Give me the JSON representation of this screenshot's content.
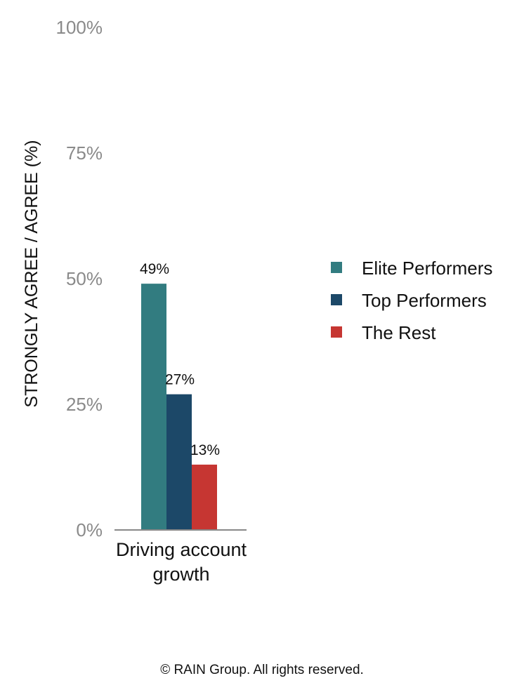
{
  "chart_data": {
    "type": "bar",
    "categories": [
      "Driving account growth"
    ],
    "category_lines": [
      [
        "Driving account",
        "growth"
      ]
    ],
    "series": [
      {
        "name": "Elite Performers",
        "values": [
          49
        ],
        "color": "#327c80",
        "label": "49%"
      },
      {
        "name": "Top Performers",
        "values": [
          27
        ],
        "color": "#1c4868",
        "label": "27%"
      },
      {
        "name": "The Rest",
        "values": [
          13
        ],
        "color": "#c63632",
        "label": "13%"
      }
    ],
    "yticks": [
      {
        "value": 0,
        "label": "0%"
      },
      {
        "value": 25,
        "label": "25%"
      },
      {
        "value": 50,
        "label": "50%"
      },
      {
        "value": 75,
        "label": "75%"
      },
      {
        "value": 100,
        "label": "100%"
      }
    ],
    "ylabel": "STRONGLY AGREE / AGREE (%)",
    "xlabel": "",
    "ylim": [
      0,
      100
    ],
    "grid": false,
    "legend_position": "right",
    "axis_color": "#888888"
  },
  "footer": "© RAIN Group. All rights reserved."
}
